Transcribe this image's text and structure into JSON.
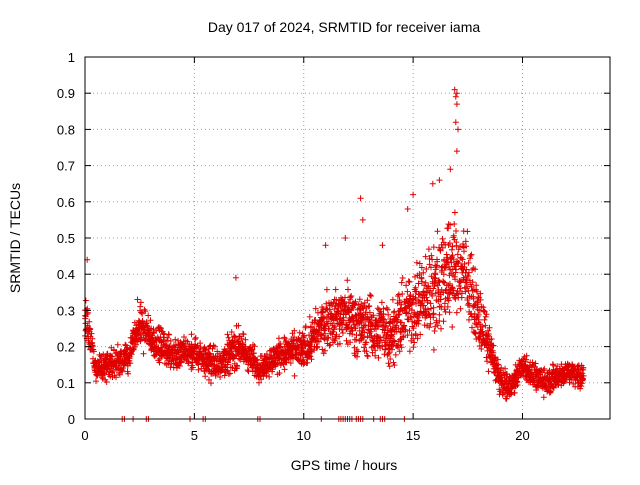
{
  "chart_data": {
    "type": "scatter",
    "title": "Day 017 of 2024, SRMTID for receiver iama",
    "xlabel": "GPS time / hours",
    "ylabel": "SRMTID / TECUs",
    "xlim": [
      0,
      24
    ],
    "ylim": [
      0,
      1
    ],
    "x_ticks": [
      0,
      5,
      10,
      15,
      20
    ],
    "y_ticks": [
      0,
      0.1,
      0.2,
      0.3,
      0.4,
      0.5,
      0.6,
      0.7,
      0.8,
      0.9,
      1
    ],
    "x_tick_labels": [
      "0",
      "5",
      "10",
      "15",
      "20"
    ],
    "y_tick_labels": [
      "0",
      "0.1",
      "0.2",
      "0.3",
      "0.4",
      "0.5",
      "0.6",
      "0.7",
      "0.8",
      "0.9",
      "1"
    ],
    "grid": true,
    "marker": "+",
    "colors": {
      "series": "#e00000",
      "axis": "#000000",
      "grid": "#a0a0a0"
    },
    "series": [
      {
        "name": "SRMTID",
        "description": "approximate envelope of the dense point cloud (hours, median value, spread)",
        "envelope_x": [
          0,
          0.3,
          0.5,
          1,
          2,
          2.5,
          3,
          4,
          5,
          6,
          7,
          8,
          9,
          10,
          11,
          12,
          13,
          14,
          15,
          15.5,
          16,
          16.5,
          17,
          17.5,
          18,
          18.5,
          19,
          19.5,
          20,
          20.5,
          21,
          22,
          22.8
        ],
        "envelope_y": [
          0.28,
          0.2,
          0.14,
          0.15,
          0.17,
          0.26,
          0.22,
          0.18,
          0.18,
          0.15,
          0.2,
          0.14,
          0.18,
          0.19,
          0.27,
          0.29,
          0.25,
          0.24,
          0.31,
          0.33,
          0.36,
          0.41,
          0.42,
          0.38,
          0.28,
          0.2,
          0.1,
          0.09,
          0.15,
          0.12,
          0.1,
          0.13,
          0.12
        ],
        "envelope_spread": [
          0.08,
          0.05,
          0.04,
          0.05,
          0.05,
          0.06,
          0.05,
          0.05,
          0.05,
          0.05,
          0.06,
          0.04,
          0.05,
          0.06,
          0.08,
          0.09,
          0.09,
          0.09,
          0.12,
          0.13,
          0.15,
          0.16,
          0.15,
          0.12,
          0.09,
          0.06,
          0.04,
          0.04,
          0.04,
          0.04,
          0.04,
          0.04,
          0.04
        ],
        "outliers": [
          [
            0.1,
            0.44
          ],
          [
            16.9,
            0.91
          ],
          [
            16.95,
            0.89
          ],
          [
            17.0,
            0.9
          ],
          [
            17.0,
            0.87
          ],
          [
            16.95,
            0.82
          ],
          [
            17.05,
            0.8
          ],
          [
            17.0,
            0.74
          ],
          [
            12.6,
            0.61
          ],
          [
            12.7,
            0.55
          ],
          [
            14.75,
            0.58
          ],
          [
            15.0,
            0.62
          ],
          [
            15.9,
            0.65
          ],
          [
            16.2,
            0.66
          ],
          [
            16.7,
            0.69
          ],
          [
            11.0,
            0.48
          ],
          [
            11.9,
            0.5
          ],
          [
            6.9,
            0.39
          ],
          [
            2.4,
            0.33
          ],
          [
            13.6,
            0.48
          ]
        ],
        "zero_points_x": [
          1.7,
          1.8,
          2.2,
          2.8,
          2.9,
          4.8,
          5.4,
          5.5,
          7.9,
          8.0,
          10.8,
          11.6,
          11.7,
          11.8,
          11.9,
          12.0,
          12.1,
          12.2,
          12.4,
          12.5,
          12.6,
          12.7,
          13.2,
          13.5,
          13.6,
          13.7,
          14.6
        ]
      }
    ]
  }
}
